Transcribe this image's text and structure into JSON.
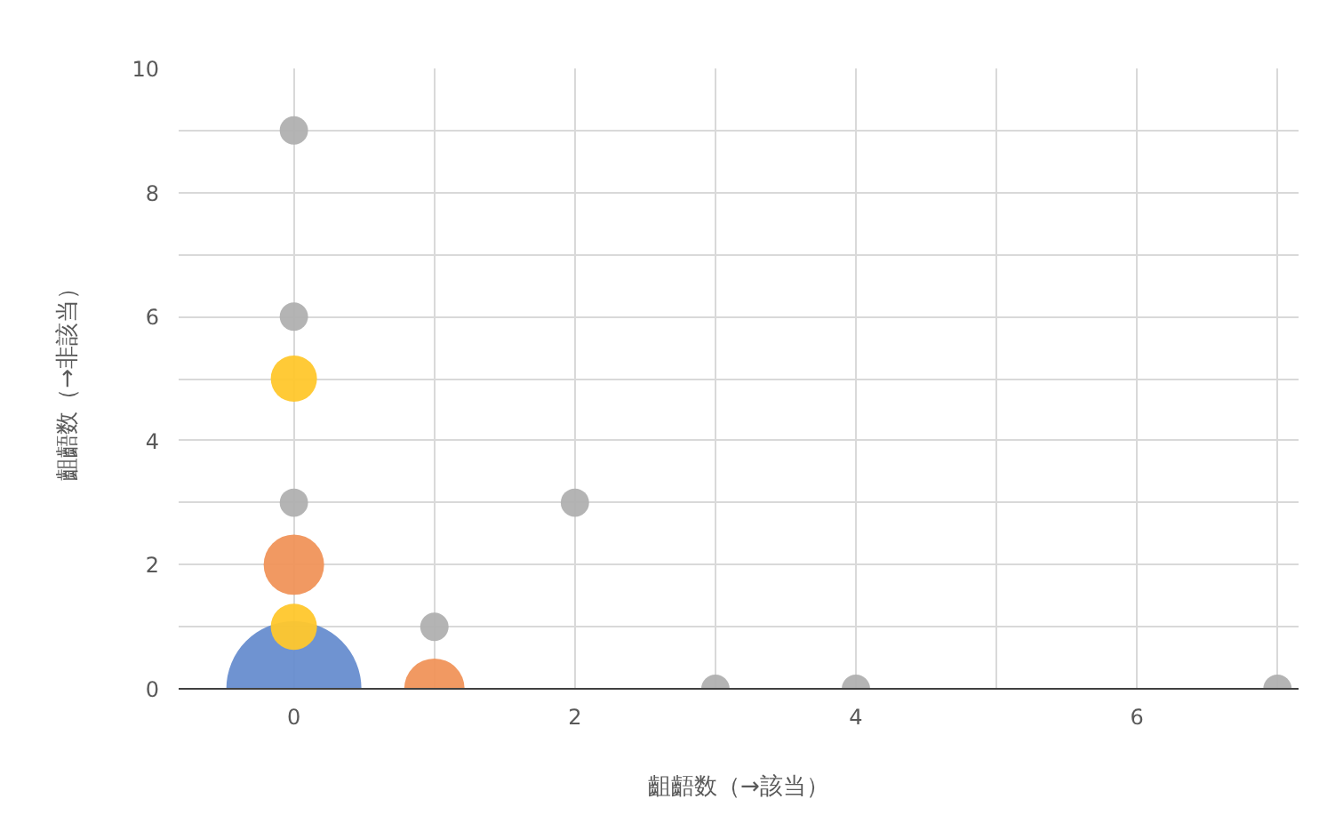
{
  "chart_data": {
    "type": "bubble",
    "xlabel": "齟齬数（→該当）",
    "ylabel": "齟齬数（→非該当）",
    "xlim": [
      -0.82,
      7.15
    ],
    "ylim": [
      0,
      10
    ],
    "xticks": [
      0,
      {
        "value": 1,
        "label": null
      },
      2,
      {
        "value": 3,
        "label": null
      },
      4,
      {
        "value": 5,
        "label": null
      },
      6,
      {
        "value": 7,
        "label": null
      }
    ],
    "yticks": [
      0,
      {
        "value": 1,
        "label": null
      },
      2,
      {
        "value": 3,
        "label": null
      },
      4,
      {
        "value": 5,
        "label": null
      },
      6,
      {
        "value": 7,
        "label": null
      },
      8,
      {
        "value": 9,
        "label": null
      },
      10
    ],
    "grid": true,
    "series": [
      {
        "color": "#678dcf",
        "x": [
          0
        ],
        "values": [
          0
        ],
        "sizes": [
          1
        ]
      },
      {
        "color": "#f0945a",
        "x": [
          0,
          1
        ],
        "values": [
          2,
          0
        ],
        "sizes": [
          0.2,
          0.2
        ]
      },
      {
        "color": "#ffc72c",
        "x": [
          0,
          0
        ],
        "values": [
          5,
          1
        ],
        "sizes": [
          0.117,
          0.117
        ]
      },
      {
        "color": "#b0b0b0",
        "x": [
          0,
          0,
          0,
          2,
          1,
          3,
          4,
          7
        ],
        "values": [
          9,
          6,
          3,
          3,
          1,
          0,
          0,
          0
        ],
        "sizes": [
          0.044,
          0.044,
          0.044,
          0.044,
          0.044,
          0.044,
          0.044,
          0.044
        ]
      }
    ]
  }
}
